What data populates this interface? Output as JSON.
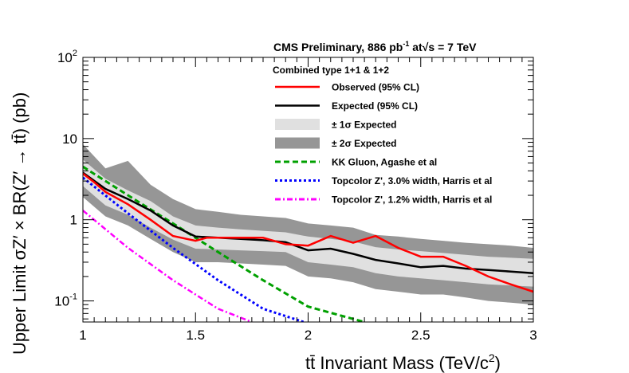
{
  "chart_data": {
    "type": "line",
    "header": {
      "text": "CMS Preliminary, 886 pb",
      "sup": "-1",
      "mid": " at",
      "sqrt": "√s",
      "tail": " = 7 TeV"
    },
    "legend_title": "Combined type 1+1 & 1+2",
    "xlabel": {
      "ttbar": "tt̄",
      "text": " Invariant Mass (TeV/c",
      "sup": "2",
      "close": ")"
    },
    "ylabel": "Upper Limit σZ′ × BR(Z′ → tt̄) (pb)",
    "xlim": [
      1,
      3
    ],
    "ylim": [
      0.055,
      100
    ],
    "yscale": "log",
    "x_ticks": [
      "1",
      "1.5",
      "2",
      "2.5",
      "3"
    ],
    "y_ticks": [
      {
        "value": 100,
        "base": "10",
        "exp": "2"
      },
      {
        "value": 10,
        "base": "10",
        "exp": ""
      },
      {
        "value": 1,
        "base": "1",
        "exp": ""
      },
      {
        "value": 0.1,
        "base": "10",
        "exp": "-1"
      }
    ],
    "legend": [
      {
        "label": "Observed (95% CL)",
        "kind": "line",
        "color": "#ff0000",
        "dash": "solid"
      },
      {
        "label": "Expected (95% CL)",
        "kind": "line",
        "color": "#000000",
        "dash": "solid"
      },
      {
        "label": "± 1σ Expected",
        "kind": "band",
        "color": "#e0e0e0"
      },
      {
        "label": "± 2σ Expected",
        "kind": "band",
        "color": "#969696"
      },
      {
        "label": "KK Gluon, Agashe et al",
        "kind": "line",
        "color": "#00a000",
        "dash": "dashed"
      },
      {
        "label": "Topcolor Z', 3.0% width, Harris et al",
        "kind": "line",
        "color": "#0000ff",
        "dash": "dotted"
      },
      {
        "label": "Topcolor Z', 1.2% width, Harris et al",
        "kind": "line",
        "color": "#ff00ff",
        "dash": "dashdot"
      }
    ],
    "band_x": [
      1.0,
      1.1,
      1.2,
      1.3,
      1.4,
      1.5,
      1.6,
      1.7,
      1.8,
      1.9,
      2.0,
      2.1,
      2.2,
      2.3,
      2.4,
      2.5,
      2.6,
      2.7,
      2.8,
      2.9,
      3.0
    ],
    "band_2s_hi": [
      8.5,
      4.3,
      5.3,
      2.7,
      1.8,
      1.35,
      1.25,
      1.15,
      1.1,
      1.05,
      0.9,
      0.85,
      0.8,
      0.65,
      0.62,
      0.58,
      0.55,
      0.52,
      0.5,
      0.48,
      0.45
    ],
    "band_1s_hi": [
      5.5,
      3.2,
      2.3,
      1.7,
      1.1,
      0.85,
      0.8,
      0.76,
      0.73,
      0.7,
      0.62,
      0.58,
      0.54,
      0.46,
      0.43,
      0.41,
      0.39,
      0.37,
      0.35,
      0.34,
      0.33
    ],
    "band_1s_lo": [
      2.6,
      1.5,
      1.15,
      0.8,
      0.57,
      0.44,
      0.43,
      0.42,
      0.41,
      0.4,
      0.3,
      0.28,
      0.26,
      0.22,
      0.2,
      0.19,
      0.18,
      0.17,
      0.16,
      0.155,
      0.15
    ],
    "band_2s_lo": [
      1.9,
      1.1,
      0.85,
      0.58,
      0.4,
      0.3,
      0.3,
      0.29,
      0.28,
      0.27,
      0.2,
      0.19,
      0.17,
      0.14,
      0.13,
      0.12,
      0.12,
      0.11,
      0.1,
      0.095,
      0.09
    ],
    "expected": {
      "name": "Expected (95% CL)",
      "x": [
        1.0,
        1.1,
        1.2,
        1.3,
        1.4,
        1.5,
        1.6,
        1.7,
        1.8,
        1.9,
        2.0,
        2.1,
        2.2,
        2.3,
        2.4,
        2.5,
        2.6,
        2.7,
        2.8,
        2.9,
        3.0
      ],
      "y": [
        3.8,
        2.4,
        1.8,
        1.3,
        0.85,
        0.62,
        0.6,
        0.58,
        0.56,
        0.53,
        0.42,
        0.44,
        0.38,
        0.32,
        0.29,
        0.26,
        0.27,
        0.25,
        0.24,
        0.23,
        0.22
      ]
    },
    "observed": {
      "name": "Observed (95% CL)",
      "x": [
        1.0,
        1.05,
        1.1,
        1.2,
        1.3,
        1.4,
        1.5,
        1.55,
        1.6,
        1.7,
        1.8,
        1.9,
        2.0,
        2.1,
        2.2,
        2.3,
        2.4,
        2.5,
        2.6,
        2.7,
        2.8,
        2.9,
        3.0
      ],
      "y": [
        3.7,
        2.9,
        2.2,
        1.55,
        1.0,
        0.63,
        0.55,
        0.6,
        0.6,
        0.6,
        0.6,
        0.5,
        0.48,
        0.63,
        0.52,
        0.63,
        0.45,
        0.35,
        0.35,
        0.27,
        0.2,
        0.16,
        0.13
      ]
    },
    "kk_gluon": {
      "name": "KK Gluon, Agashe et al",
      "x": [
        1.0,
        1.2,
        1.4,
        1.6,
        1.8,
        2.0,
        2.2,
        2.25
      ],
      "y": [
        4.5,
        2.0,
        0.9,
        0.4,
        0.18,
        0.085,
        0.06,
        0.055
      ]
    },
    "topcolor_30": {
      "name": "Topcolor Z', 3.0% width, Harris et al",
      "x": [
        1.0,
        1.2,
        1.4,
        1.6,
        1.8,
        1.98
      ],
      "y": [
        3.3,
        1.2,
        0.45,
        0.18,
        0.08,
        0.055
      ]
    },
    "topcolor_12": {
      "name": "Topcolor Z', 1.2% width, Harris et al",
      "x": [
        1.0,
        1.2,
        1.4,
        1.6,
        1.75
      ],
      "y": [
        1.3,
        0.45,
        0.18,
        0.08,
        0.055
      ]
    }
  }
}
